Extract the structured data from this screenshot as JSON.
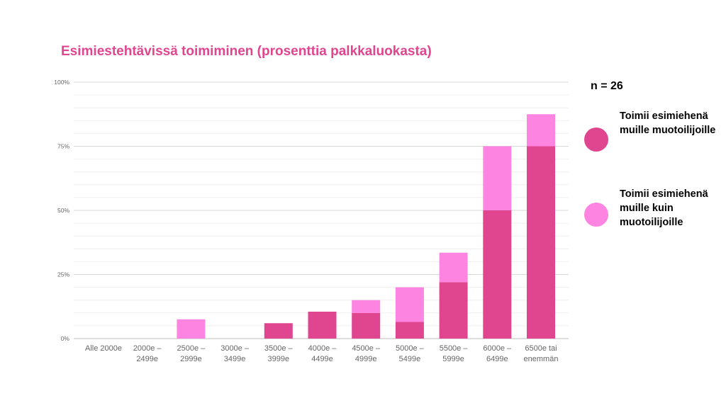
{
  "title": "Esimiestehtävissä toimiminen (prosenttia palkkaluokasta)",
  "n_label": "n = 26",
  "colors": {
    "title": "#e0458f",
    "series_1": "#e0458f",
    "series_2": "#fd84e0",
    "grid": "#e6e6e6",
    "axis_text": "#666666"
  },
  "legend": [
    {
      "label": "Toimii esimiehenä muille muotoilijoille",
      "color": "#e0458f"
    },
    {
      "label": "Toimii esimiehenä muille kuin muotoilijoille",
      "color": "#fd84e0"
    }
  ],
  "chart_data": {
    "type": "bar",
    "stacked": true,
    "title": "Esimiestehtävissä toimiminen (prosenttia palkkaluokasta)",
    "categories": [
      "Alle 2000e",
      "2000e – 2499e",
      "2500e – 2999e",
      "3000e – 3499e",
      "3500e – 3999e",
      "4000e – 4499e",
      "4500e – 4999e",
      "5000e – 5499e",
      "5500e – 5999e",
      "6000e – 6499e",
      "6500e tai enemmän"
    ],
    "series": [
      {
        "name": "Toimii esimiehenä muille muotoilijoille",
        "values": [
          0,
          0,
          0,
          0,
          6,
          10.5,
          10,
          6.5,
          22,
          50,
          75
        ]
      },
      {
        "name": "Toimii esimiehenä muille kuin muotoilijoille",
        "values": [
          0,
          0,
          7.5,
          0,
          0,
          0,
          5,
          13.5,
          11.5,
          25,
          12.5
        ]
      }
    ],
    "ylim": [
      0,
      100
    ],
    "yticks": [
      0,
      25,
      50,
      75,
      100
    ],
    "ytick_labels": [
      "0%",
      "25%",
      "50%",
      "75%",
      "100%"
    ],
    "grid": true,
    "legend_position": "right",
    "xlabel": "",
    "ylabel": ""
  }
}
